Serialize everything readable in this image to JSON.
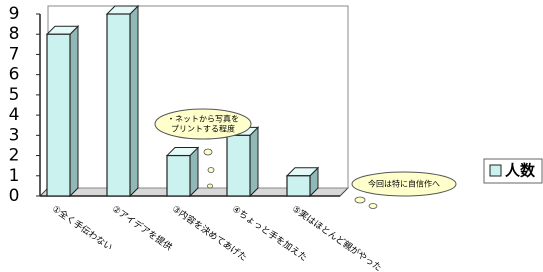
{
  "chart_data": {
    "type": "bar",
    "categories": [
      "①全く手伝わない",
      "②アイデアを提供",
      "③内容を決めてあげた",
      "④ちょっと手を加えた",
      "⑤実はほとんど親がやった"
    ],
    "series": [
      {
        "name": "人数",
        "color": "#ccf2f0",
        "values": [
          8,
          9,
          2,
          3,
          1
        ]
      }
    ],
    "ylim": [
      0,
      9
    ],
    "yticks": [
      0,
      1,
      2,
      3,
      4,
      5,
      6,
      7,
      8,
      9
    ],
    "grid": false,
    "legend": "right",
    "annotations": [
      {
        "lines": [
          "・ネットから写真を",
          "プリントする程度"
        ]
      },
      {
        "lines": [
          "今回は特に自信作へ"
        ]
      }
    ]
  }
}
